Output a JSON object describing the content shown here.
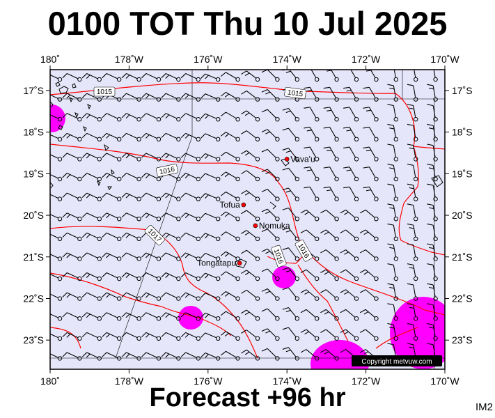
{
  "title": "0100 TOT Thu 10 Jul 2025",
  "footer": "Forecast +96 hr",
  "image_code": "IM2",
  "copyright": "Copyright metvuw.com",
  "colors": {
    "map_background": "#e6e6fa",
    "isobar": "#ff0000",
    "precip": "#ff00ff",
    "place_dot": "#ff0000",
    "wind_barb": "#000000"
  },
  "map": {
    "lon_range": [
      -180,
      -170
    ],
    "lat_range": [
      -23.7,
      -16.5
    ],
    "lon_ticks": [
      {
        "lon": -180,
        "label": "180˚"
      },
      {
        "lon": -178,
        "label": "178˚W"
      },
      {
        "lon": -176,
        "label": "176˚W"
      },
      {
        "lon": -174,
        "label": "174˚W"
      },
      {
        "lon": -172,
        "label": "172˚W"
      },
      {
        "lon": -170,
        "label": "170˚W"
      }
    ],
    "lat_ticks": [
      {
        "lat": -17,
        "label": "17˚S"
      },
      {
        "lat": -18,
        "label": "18˚S"
      },
      {
        "lat": -19,
        "label": "19˚S"
      },
      {
        "lat": -20,
        "label": "20˚S"
      },
      {
        "lat": -21,
        "label": "21˚S"
      },
      {
        "lat": -22,
        "label": "22˚S"
      },
      {
        "lat": -23,
        "label": "23˚S"
      }
    ],
    "places": [
      {
        "name": "Vava'u",
        "lon": -174.0,
        "lat": -18.65
      },
      {
        "name": "Tofua",
        "lon": -175.1,
        "lat": -19.75
      },
      {
        "name": "Nomuka",
        "lon": -174.8,
        "lat": -20.25
      },
      {
        "name": "Tongatapu",
        "lon": -175.2,
        "lat": -21.15
      }
    ],
    "isobar_labels": [
      "1015",
      "1015",
      "1016",
      "1017",
      "1016",
      "1016"
    ]
  }
}
